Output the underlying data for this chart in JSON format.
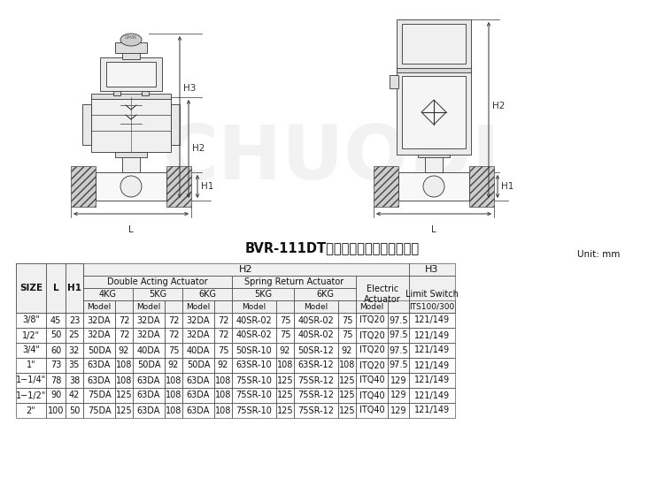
{
  "title": "BVR-111DT控制球閥配置及安装尺寸表",
  "unit_label": "Unit: mm",
  "bg": "#ffffff",
  "lc": "#333333",
  "hbg": "#f0f0f0",
  "rows": [
    [
      "3/8\"",
      "45",
      "23",
      "32DA",
      "72",
      "32DA",
      "72",
      "32DA",
      "72",
      "40SR-02",
      "75",
      "40SR-02",
      "75",
      "ITQ20",
      "97.5",
      "121/149"
    ],
    [
      "1/2\"",
      "50",
      "25",
      "32DA",
      "72",
      "32DA",
      "72",
      "32DA",
      "72",
      "40SR-02",
      "75",
      "40SR-02",
      "75",
      "ITQ20",
      "97.5",
      "121/149"
    ],
    [
      "3/4\"",
      "60",
      "32",
      "50DA",
      "92",
      "40DA",
      "75",
      "40DA",
      "75",
      "50SR-10",
      "92",
      "50SR-12",
      "92",
      "ITQ20",
      "97.5",
      "121/149"
    ],
    [
      "1\"",
      "73",
      "35",
      "63DA",
      "108",
      "50DA",
      "92",
      "50DA",
      "92",
      "63SR-10",
      "108",
      "63SR-12",
      "108",
      "ITQ20",
      "97.5",
      "121/149"
    ],
    [
      "1−1/4\"",
      "78",
      "38",
      "63DA",
      "108",
      "63DA",
      "108",
      "63DA",
      "108",
      "75SR-10",
      "125",
      "75SR-12",
      "125",
      "ITQ40",
      "129",
      "121/149"
    ],
    [
      "1−1/2\"",
      "90",
      "42",
      "75DA",
      "125",
      "63DA",
      "108",
      "63DA",
      "108",
      "75SR-10",
      "125",
      "75SR-12",
      "125",
      "ITQ40",
      "129",
      "121/149"
    ],
    [
      "2\"",
      "100",
      "50",
      "75DA",
      "125",
      "63DA",
      "108",
      "63DA",
      "108",
      "75SR-10",
      "125",
      "75SR-12",
      "125",
      "ITQ40",
      "129",
      "121/149"
    ]
  ]
}
